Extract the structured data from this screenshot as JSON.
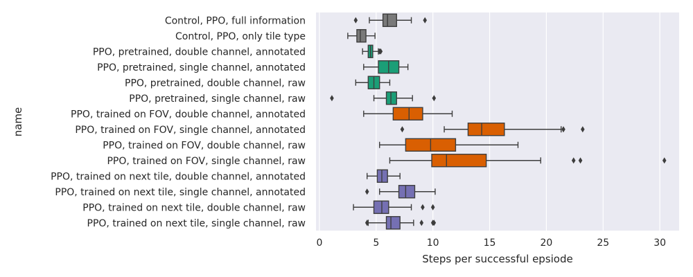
{
  "chart_data": {
    "type": "box",
    "title": "",
    "xlabel": "Steps per successful epsiode",
    "ylabel": "name",
    "xlim": [
      -0.3,
      31.7
    ],
    "xticks": [
      0,
      5,
      10,
      15,
      20,
      25,
      30
    ],
    "grid": true,
    "background": "#eaeaf2",
    "whisker_color": "#3d3d3d",
    "categories": [
      "Control, PPO, full information",
      "Control, PPO, only tile type",
      "PPO, pretrained, double channel, annotated",
      "PPO, pretrained, single channel, annotated",
      "PPO, pretrained, double channel, raw",
      "PPO, pretrained, single channel, raw",
      "PPO, trained on FOV, double channel, annotated",
      "PPO, trained on FOV, single channel, annotated",
      "PPO, trained on FOV, double channel, raw",
      "PPO, trained on FOV, single channel, raw",
      "PPO, trained on next tile, double channel, annotated",
      "PPO, trained on next tile, single channel, annotated",
      "PPO, trained on next tile, double channel, raw",
      "PPO, trained on next tile, single channel, raw"
    ],
    "boxes": [
      {
        "whislo": 4.4,
        "q1": 5.6,
        "med": 6.0,
        "q3": 6.8,
        "whishi": 8.1,
        "fliers": [
          3.2,
          9.3
        ],
        "color": "#7a7a7a"
      },
      {
        "whislo": 2.5,
        "q1": 3.3,
        "med": 3.6,
        "q3": 4.1,
        "whishi": 4.9,
        "fliers": [],
        "color": "#7a7a7a"
      },
      {
        "whislo": 3.8,
        "q1": 4.3,
        "med": 4.5,
        "q3": 4.7,
        "whishi": 5.2,
        "fliers": [
          5.3,
          5.4
        ],
        "color": "#1b9e77"
      },
      {
        "whislo": 3.9,
        "q1": 5.2,
        "med": 6.1,
        "q3": 7.0,
        "whishi": 7.8,
        "fliers": [],
        "color": "#1b9e77"
      },
      {
        "whislo": 3.2,
        "q1": 4.3,
        "med": 4.8,
        "q3": 5.3,
        "whishi": 6.2,
        "fliers": [],
        "color": "#1b9e77"
      },
      {
        "whislo": 4.8,
        "q1": 5.9,
        "med": 6.3,
        "q3": 6.8,
        "whishi": 8.2,
        "fliers": [
          1.1,
          10.1
        ],
        "color": "#1b9e77"
      },
      {
        "whislo": 3.9,
        "q1": 6.5,
        "med": 7.9,
        "q3": 9.1,
        "whishi": 11.7,
        "fliers": [],
        "color": "#d95f02"
      },
      {
        "whislo": 11.0,
        "q1": 13.1,
        "med": 14.3,
        "q3": 16.3,
        "whishi": 21.3,
        "fliers": [
          7.3,
          21.5,
          23.2
        ],
        "color": "#d95f02"
      },
      {
        "whislo": 5.3,
        "q1": 7.6,
        "med": 9.8,
        "q3": 12.0,
        "whishi": 17.5,
        "fliers": [],
        "color": "#d95f02"
      },
      {
        "whislo": 6.2,
        "q1": 9.9,
        "med": 11.2,
        "q3": 14.7,
        "whishi": 19.5,
        "fliers": [
          22.4,
          23.0,
          30.4
        ],
        "color": "#d95f02"
      },
      {
        "whislo": 4.2,
        "q1": 5.1,
        "med": 5.5,
        "q3": 6.0,
        "whishi": 7.1,
        "fliers": [],
        "color": "#7570b3"
      },
      {
        "whislo": 5.3,
        "q1": 7.0,
        "med": 7.6,
        "q3": 8.4,
        "whishi": 10.2,
        "fliers": [
          4.2
        ],
        "color": "#7570b3"
      },
      {
        "whislo": 3.0,
        "q1": 4.8,
        "med": 5.5,
        "q3": 6.1,
        "whishi": 8.1,
        "fliers": [
          9.1,
          10.0
        ],
        "color": "#7570b3"
      },
      {
        "whislo": 4.3,
        "q1": 5.9,
        "med": 6.3,
        "q3": 7.1,
        "whishi": 8.3,
        "fliers": [
          4.2,
          9.0,
          10.0,
          10.1
        ],
        "color": "#7570b3"
      }
    ]
  }
}
